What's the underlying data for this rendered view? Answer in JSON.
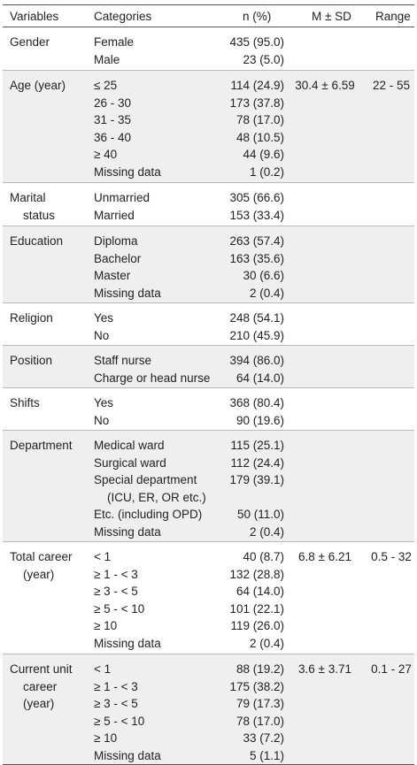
{
  "header": {
    "variables": "Variables",
    "categories": "Categories",
    "n": "n (%)",
    "msd": "M ± SD",
    "range": "Range"
  },
  "groups": [
    {
      "variable": [
        "Gender"
      ],
      "categories": [
        "Female",
        "Male"
      ],
      "n": [
        "435 (95.0)",
        "23 (5.0)"
      ],
      "msd": "",
      "range": "",
      "height": 48
    },
    {
      "variable": [
        "Age (year)"
      ],
      "categories": [
        "≤ 25",
        "26 - 30",
        "31 - 35",
        "36 - 40",
        "≥ 40",
        "Missing data"
      ],
      "n": [
        "114 (24.9)",
        "173 (37.8)",
        "78 (17.0)",
        "48 (10.5)",
        "44 (9.6)",
        "1 (0.2)"
      ],
      "msd": "30.4 ± 6.59",
      "range": "22 - 55",
      "height": 126
    },
    {
      "variable": [
        "Marital",
        "status"
      ],
      "categories": [
        "Unmarried",
        "Married"
      ],
      "n": [
        "305 (66.6)",
        "153 (33.4)"
      ],
      "msd": "",
      "range": "",
      "height": 48
    },
    {
      "variable": [
        "Education"
      ],
      "categories": [
        "Diploma",
        "Bachelor",
        "Master",
        "Missing data"
      ],
      "n": [
        "263 (57.4)",
        "163 (35.6)",
        "30 (6.6)",
        "2 (0.4)"
      ],
      "msd": "",
      "range": "",
      "height": 86
    },
    {
      "variable": [
        "Religion"
      ],
      "categories": [
        "Yes",
        "No"
      ],
      "n": [
        "248 (54.1)",
        "210 (45.9)"
      ],
      "msd": "",
      "range": "",
      "height": 47
    },
    {
      "variable": [
        "Position"
      ],
      "categories": [
        "Staff nurse",
        "Charge or head nurse"
      ],
      "n": [
        "394 (86.0)",
        "64 (14.0)"
      ],
      "msd": "",
      "range": "",
      "height": 47
    },
    {
      "variable": [
        "Shifts"
      ],
      "categories": [
        "Yes",
        "No"
      ],
      "n": [
        "368 (80.4)",
        "90 (19.6)"
      ],
      "msd": "",
      "range": "",
      "height": 47
    },
    {
      "variable": [
        "Department"
      ],
      "categories": [
        "Medical ward",
        "Surgical ward",
        "Special department",
        "(ICU, ER, OR etc.)",
        "Etc. (including OPD)",
        "Missing data"
      ],
      "n": [
        "115 (25.1)",
        "112 (24.4)",
        "179 (39.1)",
        "",
        "50 (11.0)",
        "2 (0.4)"
      ],
      "msd": "",
      "range": "",
      "height": 125
    },
    {
      "variable": [
        "Total career",
        "(year)"
      ],
      "categories": [
        "< 1",
        "≥ 1 - < 3",
        "≥ 3 - < 5",
        "≥ 5 - < 10",
        "≥ 10",
        "Missing data"
      ],
      "n": [
        "40 (8.7)",
        "132 (28.8)",
        "64 (14.0)",
        "101 (22.1)",
        "119 (26.0)",
        "2 (0.4)"
      ],
      "msd": "6.8 ± 6.21",
      "range": "0.5 - 32",
      "height": 126
    },
    {
      "variable": [
        "Current unit",
        "career",
        "(year)"
      ],
      "categories": [
        "< 1",
        "≥ 1 - < 3",
        "≥ 3 - < 5",
        "≥ 5 - < 10",
        "≥ 10",
        "Missing data"
      ],
      "n": [
        "88 (19.2)",
        "175 (38.2)",
        "79 (17.3)",
        "78 (17.0)",
        "33 (7.2)",
        "5 (1.1)"
      ],
      "msd": "3.6 ± 3.71",
      "range": "0.1 - 27",
      "height": 124
    }
  ]
}
